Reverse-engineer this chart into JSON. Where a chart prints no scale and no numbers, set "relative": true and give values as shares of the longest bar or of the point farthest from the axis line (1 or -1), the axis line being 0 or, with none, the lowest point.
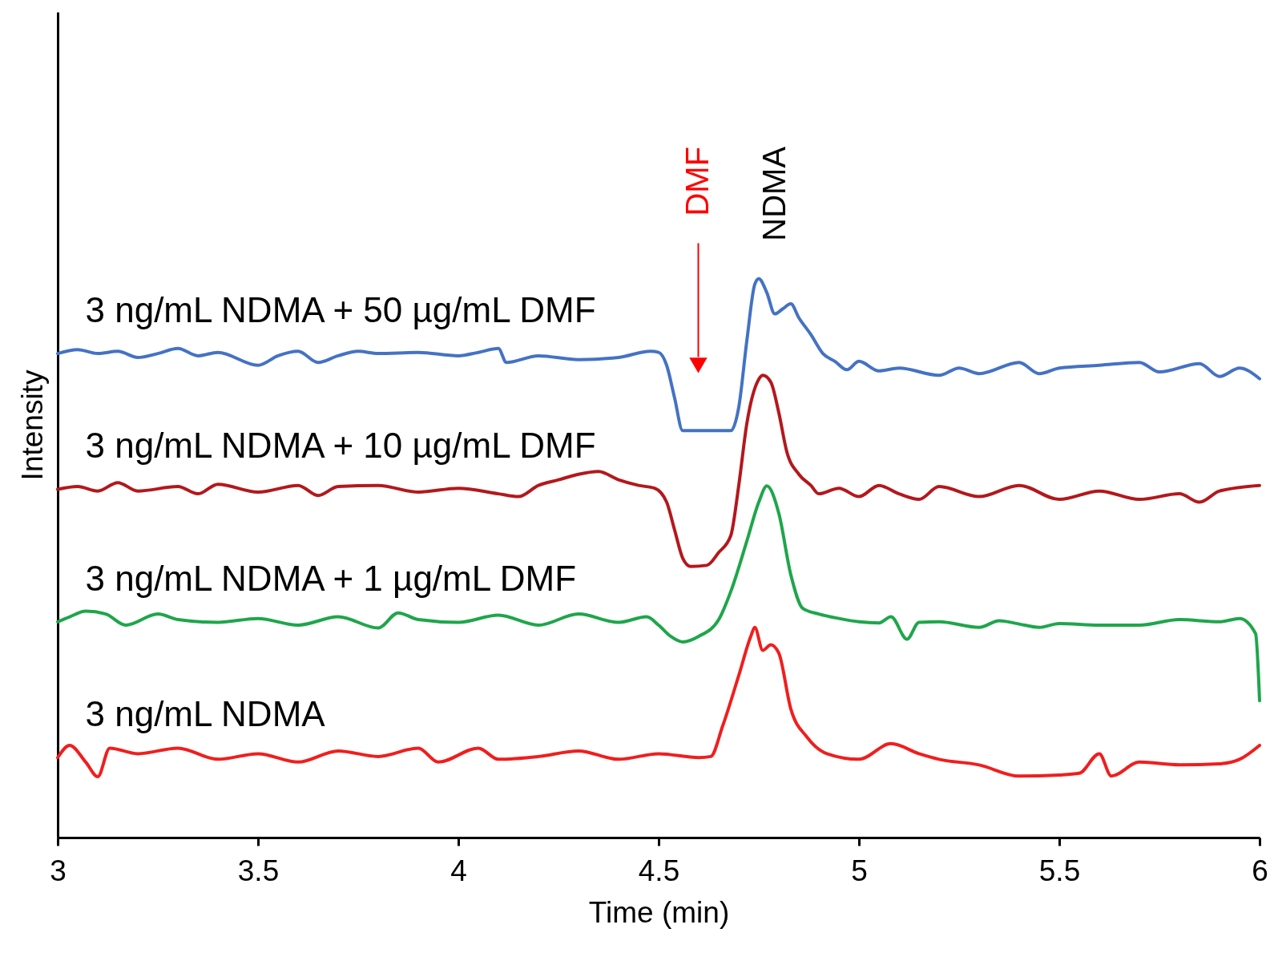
{
  "chart_data": {
    "type": "line",
    "relative": true,
    "xlabel": "Time (min)",
    "ylabel": "Intensity",
    "xlim": [
      3,
      6
    ],
    "xticks": [
      3,
      3.5,
      4,
      4.5,
      5,
      5.5,
      6
    ],
    "grid": false,
    "marker": "none",
    "line_style": "solid",
    "annotations": [
      "DMF",
      "NDMA"
    ],
    "series": [
      {
        "name": "3 ng/mL NDMA + 50 µg/mL DMF",
        "color": "#4472c4",
        "x": [
          3.0,
          3.05,
          3.1,
          3.15,
          3.2,
          3.25,
          3.3,
          3.35,
          3.4,
          3.5,
          3.55,
          3.6,
          3.65,
          3.7,
          3.75,
          3.8,
          3.9,
          4.0,
          4.05,
          4.1,
          4.12,
          4.2,
          4.3,
          4.4,
          4.48,
          4.5,
          4.52,
          4.54,
          4.56,
          4.6,
          4.65,
          4.68,
          4.7,
          4.72,
          4.74,
          4.75,
          4.77,
          4.79,
          4.81,
          4.83,
          4.85,
          4.88,
          4.91,
          4.94,
          4.97,
          5.0,
          5.05,
          5.1,
          5.2,
          5.25,
          5.3,
          5.4,
          5.45,
          5.5,
          5.6,
          5.7,
          5.75,
          5.85,
          5.9,
          5.95,
          6.0
        ],
        "values": [
          0.866,
          0.873,
          0.866,
          0.87,
          0.859,
          0.866,
          0.875,
          0.862,
          0.868,
          0.845,
          0.862,
          0.87,
          0.85,
          0.862,
          0.87,
          0.866,
          0.868,
          0.862,
          0.868,
          0.875,
          0.85,
          0.862,
          0.855,
          0.859,
          0.87,
          0.868,
          0.845,
          0.786,
          0.728,
          0.728,
          0.728,
          0.728,
          0.77,
          0.888,
          0.99,
          1.0,
          0.975,
          0.937,
          0.946,
          0.955,
          0.93,
          0.9,
          0.866,
          0.852,
          0.837,
          0.852,
          0.835,
          0.84,
          0.827,
          0.84,
          0.83,
          0.85,
          0.83,
          0.84,
          0.845,
          0.85,
          0.833,
          0.848,
          0.825,
          0.84,
          0.821
        ]
      },
      {
        "name": "3 ng/mL NDMA + 10 µg/mL DMF",
        "color": "#b3181c",
        "x": [
          3.0,
          3.05,
          3.1,
          3.15,
          3.2,
          3.3,
          3.35,
          3.4,
          3.5,
          3.6,
          3.65,
          3.7,
          3.8,
          3.9,
          4.0,
          4.1,
          4.15,
          4.2,
          4.25,
          4.3,
          4.35,
          4.4,
          4.45,
          4.49,
          4.52,
          4.54,
          4.56,
          4.58,
          4.62,
          4.65,
          4.68,
          4.7,
          4.72,
          4.75,
          4.76,
          4.78,
          4.8,
          4.82,
          4.85,
          4.88,
          4.9,
          4.95,
          5.0,
          5.05,
          5.1,
          5.15,
          5.2,
          5.3,
          5.4,
          5.5,
          5.6,
          5.7,
          5.8,
          5.85,
          5.9,
          6.0
        ],
        "values": [
          0.623,
          0.628,
          0.62,
          0.635,
          0.62,
          0.628,
          0.615,
          0.632,
          0.618,
          0.63,
          0.612,
          0.628,
          0.63,
          0.618,
          0.625,
          0.615,
          0.61,
          0.63,
          0.64,
          0.65,
          0.655,
          0.64,
          0.63,
          0.625,
          0.6,
          0.55,
          0.5,
          0.485,
          0.487,
          0.51,
          0.54,
          0.63,
          0.74,
          0.82,
          0.827,
          0.815,
          0.76,
          0.69,
          0.65,
          0.63,
          0.615,
          0.625,
          0.61,
          0.63,
          0.615,
          0.605,
          0.628,
          0.61,
          0.63,
          0.605,
          0.62,
          0.605,
          0.615,
          0.6,
          0.62,
          0.63
        ]
      },
      {
        "name": "3 ng/mL NDMA + 1 µg/mL DMF",
        "color": "#1ea64b",
        "x": [
          3.0,
          3.03,
          3.07,
          3.12,
          3.17,
          3.25,
          3.3,
          3.4,
          3.5,
          3.6,
          3.7,
          3.8,
          3.85,
          3.9,
          4.0,
          4.1,
          4.2,
          4.3,
          4.4,
          4.47,
          4.5,
          4.53,
          4.56,
          4.6,
          4.65,
          4.68,
          4.72,
          4.75,
          4.77,
          4.8,
          4.83,
          4.86,
          4.9,
          4.95,
          5.0,
          5.05,
          5.08,
          5.12,
          5.15,
          5.2,
          5.3,
          5.35,
          5.4,
          5.45,
          5.5,
          5.6,
          5.7,
          5.8,
          5.9,
          5.95,
          5.99,
          6.0
        ],
        "values": [
          0.386,
          0.395,
          0.405,
          0.4,
          0.38,
          0.4,
          0.39,
          0.385,
          0.392,
          0.38,
          0.395,
          0.375,
          0.402,
          0.39,
          0.385,
          0.398,
          0.38,
          0.4,
          0.385,
          0.395,
          0.38,
          0.36,
          0.35,
          0.36,
          0.39,
          0.44,
          0.53,
          0.6,
          0.629,
          0.58,
          0.47,
          0.41,
          0.4,
          0.392,
          0.386,
          0.384,
          0.395,
          0.355,
          0.385,
          0.386,
          0.376,
          0.388,
          0.382,
          0.376,
          0.383,
          0.38,
          0.38,
          0.39,
          0.386,
          0.392,
          0.365,
          0.245
        ]
      },
      {
        "name": "3 ng/mL NDMA",
        "color": "#f01e1e",
        "x": [
          3.0,
          3.03,
          3.07,
          3.1,
          3.13,
          3.2,
          3.3,
          3.4,
          3.5,
          3.6,
          3.7,
          3.8,
          3.9,
          3.95,
          4.05,
          4.1,
          4.2,
          4.3,
          4.4,
          4.5,
          4.6,
          4.63,
          4.66,
          4.7,
          4.73,
          4.74,
          4.76,
          4.78,
          4.8,
          4.83,
          4.87,
          4.92,
          5.0,
          5.08,
          5.15,
          5.2,
          5.3,
          5.4,
          5.5,
          5.55,
          5.6,
          5.63,
          5.7,
          5.8,
          5.9,
          5.95,
          6.0
        ],
        "values": [
          0.143,
          0.165,
          0.135,
          0.109,
          0.16,
          0.15,
          0.16,
          0.14,
          0.15,
          0.135,
          0.155,
          0.145,
          0.16,
          0.135,
          0.16,
          0.14,
          0.145,
          0.155,
          0.14,
          0.15,
          0.143,
          0.145,
          0.2,
          0.29,
          0.36,
          0.376,
          0.335,
          0.345,
          0.33,
          0.23,
          0.18,
          0.15,
          0.14,
          0.168,
          0.15,
          0.14,
          0.13,
          0.11,
          0.112,
          0.115,
          0.15,
          0.11,
          0.135,
          0.13,
          0.132,
          0.14,
          0.165
        ]
      }
    ]
  }
}
